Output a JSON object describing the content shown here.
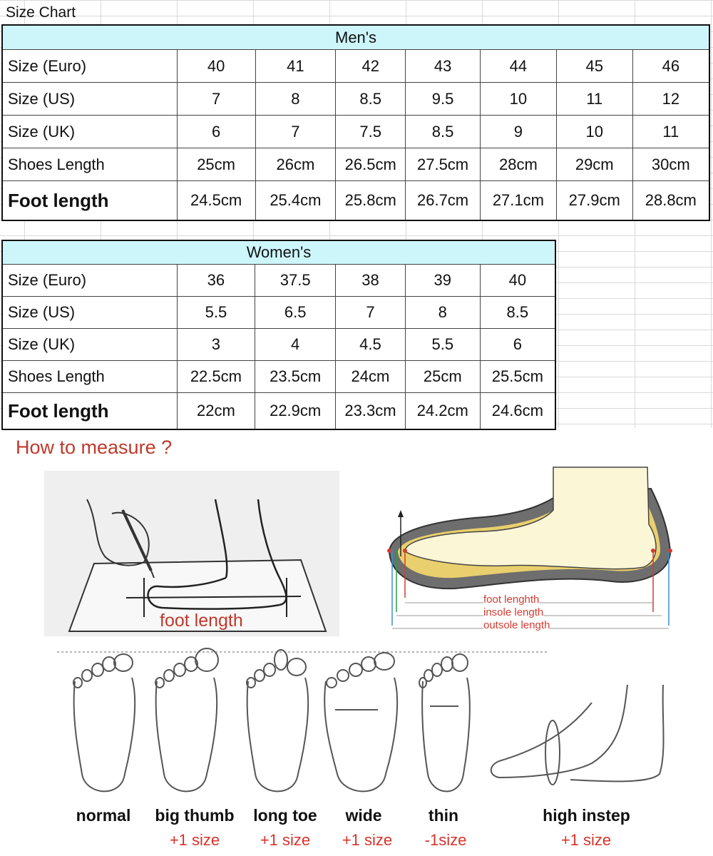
{
  "sheet_title": "Size Chart",
  "mens": {
    "header": "Men's",
    "rows": [
      {
        "label": "Size (Euro)",
        "values": [
          "40",
          "41",
          "42",
          "43",
          "44",
          "45",
          "46"
        ]
      },
      {
        "label": "Size (US)",
        "values": [
          "7",
          "8",
          "8.5",
          "9.5",
          "10",
          "11",
          "12"
        ]
      },
      {
        "label": "Size (UK)",
        "values": [
          "6",
          "7",
          "7.5",
          "8.5",
          "9",
          "10",
          "11"
        ]
      },
      {
        "label": "Shoes Length",
        "values": [
          "25cm",
          "26cm",
          "26.5cm",
          "27.5cm",
          "28cm",
          "29cm",
          "30cm"
        ]
      },
      {
        "label": "Foot length",
        "values": [
          "24.5cm",
          "25.4cm",
          "25.8cm",
          "26.7cm",
          "27.1cm",
          "27.9cm",
          "28.8cm"
        ]
      }
    ]
  },
  "womens": {
    "header": "Women's",
    "rows": [
      {
        "label": "Size (Euro)",
        "values": [
          "36",
          "37.5",
          "38",
          "39",
          "40"
        ]
      },
      {
        "label": "Size (US)",
        "values": [
          "5.5",
          "6.5",
          "7",
          "8",
          "8.5"
        ]
      },
      {
        "label": "Size (UK)",
        "values": [
          "3",
          "4",
          "4.5",
          "5.5",
          "6"
        ]
      },
      {
        "label": "Shoes Length",
        "values": [
          "22.5cm",
          "23.5cm",
          "24cm",
          "25cm",
          "25.5cm"
        ]
      },
      {
        "label": "Foot length",
        "values": [
          "22cm",
          "22.9cm",
          "23.3cm",
          "24.2cm",
          "24.6cm"
        ]
      }
    ]
  },
  "how_to_measure": {
    "title": "How to measure ?",
    "left_caption": "foot length",
    "right_labels": [
      "foot lenghth",
      "insole length",
      "outsole length"
    ]
  },
  "foot_types": [
    {
      "name": "normal",
      "modifier": ""
    },
    {
      "name": "big thumb",
      "modifier": "+1 size"
    },
    {
      "name": "long toe",
      "modifier": "+1 size"
    },
    {
      "name": "wide",
      "modifier": "+1 size"
    },
    {
      "name": "thin",
      "modifier": "-1size"
    },
    {
      "name": "high instep",
      "modifier": "+1 size"
    }
  ],
  "colors": {
    "header_bg": "#cdf6fb",
    "accent_red": "#c0392b",
    "modifier_red": "#d9322b"
  }
}
